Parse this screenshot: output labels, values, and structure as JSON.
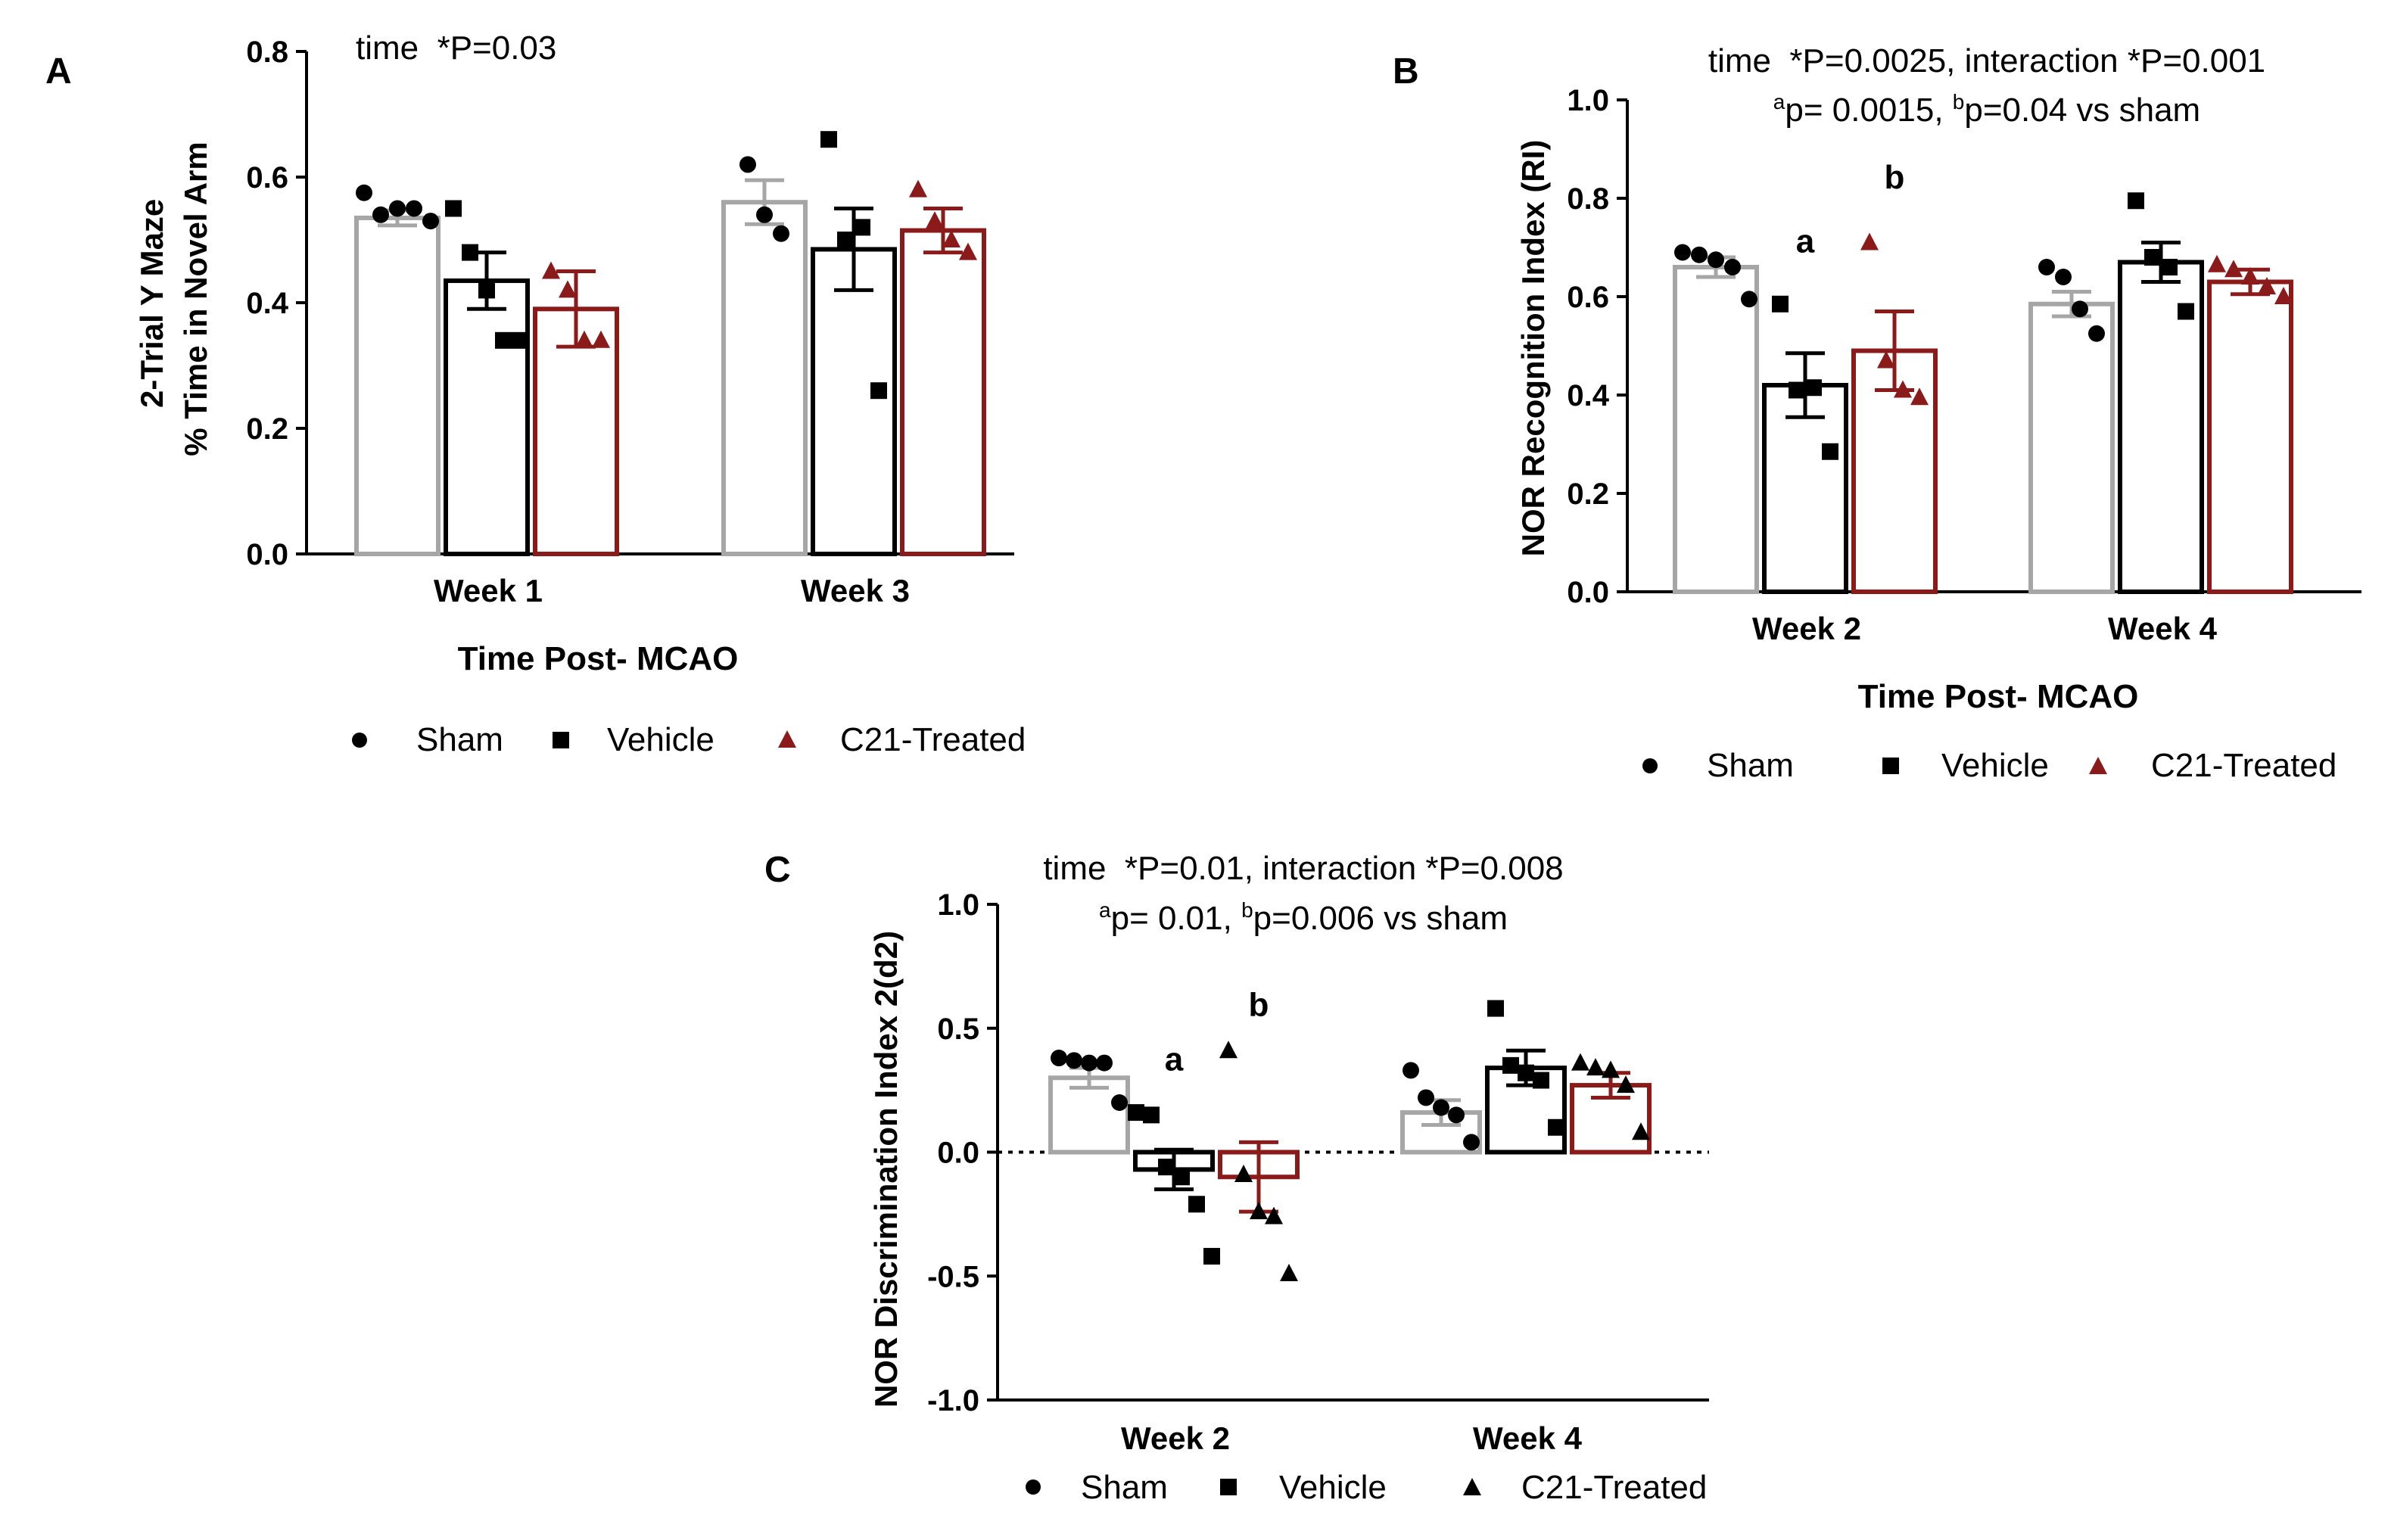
{
  "colors": {
    "sham": "#a6a6a6",
    "vehicle": "#000000",
    "c21": "#8b1a1a"
  },
  "legend_icons": [
    "circle-icon",
    "square-icon",
    "triangle-icon"
  ],
  "chart_data": [
    {
      "panel": "A",
      "type": "bar",
      "annotation": "time  *P=0.03",
      "ylabel_line1": "2-Trial Y Maze",
      "ylabel_line2": "% Time in Novel Arm",
      "xlabel": "Time Post- MCAO",
      "categories": [
        "Week 1",
        "Week 3"
      ],
      "ylim": [
        0,
        0.8
      ],
      "yticks": [
        0.0,
        0.2,
        0.4,
        0.6,
        0.8
      ],
      "ytick_labels": [
        "0.0",
        "0.2",
        "0.4",
        "0.6",
        "0.8"
      ],
      "legend_labels": [
        "Sham",
        "Vehicle",
        "C21-Treated"
      ],
      "series": [
        {
          "name": "Sham",
          "values": [
            0.535,
            0.56
          ],
          "sem": [
            0.012,
            0.035
          ],
          "points": [
            [
              0.575,
              0.54,
              0.55,
              0.55,
              0.53
            ],
            [
              0.62,
              0.54,
              0.51
            ]
          ]
        },
        {
          "name": "Vehicle",
          "values": [
            0.435,
            0.485
          ],
          "sem": [
            0.045,
            0.065
          ],
          "points": [
            [
              0.55,
              0.48,
              0.42,
              0.34,
              0.34
            ],
            [
              0.66,
              0.5,
              0.52,
              0.26
            ]
          ]
        },
        {
          "name": "C21-Treated",
          "values": [
            0.39,
            0.515
          ],
          "sem": [
            0.06,
            0.035
          ],
          "points": [
            [
              0.45,
              0.42,
              0.34,
              0.34
            ],
            [
              0.58,
              0.53,
              0.5,
              0.48
            ]
          ]
        }
      ],
      "letters": []
    },
    {
      "panel": "B",
      "type": "bar",
      "annotation_line1": "time  *P=0.0025, interaction *P=0.001",
      "annotation_line2_a_sup": "a",
      "annotation_line2_a_text": "p= 0.0015, ",
      "annotation_line2_b_sup": "b",
      "annotation_line2_b_text": "p=0.04 vs sham",
      "ylabel": "NOR Recognition Index (RI)",
      "xlabel": "Time Post- MCAO",
      "categories": [
        "Week 2",
        "Week 4"
      ],
      "ylim": [
        0,
        1.0
      ],
      "yticks": [
        0.0,
        0.2,
        0.4,
        0.6,
        0.8,
        1.0
      ],
      "ytick_labels": [
        "0.0",
        "0.2",
        "0.4",
        "0.6",
        "0.8",
        "1.0"
      ],
      "legend_labels": [
        "Sham",
        "Vehicle",
        "C21-Treated"
      ],
      "series": [
        {
          "name": "Sham",
          "values": [
            0.66,
            0.585
          ],
          "sem": [
            0.02,
            0.025
          ],
          "points": [
            [
              0.69,
              0.685,
              0.675,
              0.66,
              0.595
            ],
            [
              0.66,
              0.64,
              0.575,
              0.525
            ]
          ]
        },
        {
          "name": "Vehicle",
          "values": [
            0.42,
            0.67
          ],
          "sem": [
            0.065,
            0.04
          ],
          "points": [
            [
              0.585,
              0.41,
              0.415,
              0.285
            ],
            [
              0.795,
              0.68,
              0.66,
              0.57
            ]
          ]
        },
        {
          "name": "C21-Treated",
          "values": [
            0.49,
            0.63
          ],
          "sem": [
            0.08,
            0.025
          ],
          "points": [
            [
              0.71,
              0.47,
              0.41,
              0.395
            ],
            [
              0.665,
              0.655,
              0.64,
              0.62,
              0.6
            ]
          ]
        }
      ],
      "letters": [
        {
          "series": 1,
          "category": 0,
          "text": "a",
          "y": 0.69
        },
        {
          "series": 2,
          "category": 0,
          "text": "b",
          "y": 0.82
        }
      ]
    },
    {
      "panel": "C",
      "type": "bar",
      "annotation_line1": "time  *P=0.01, interaction *P=0.008",
      "annotation_line2_a_sup": "a",
      "annotation_line2_a_text": "p= 0.01, ",
      "annotation_line2_b_sup": "b",
      "annotation_line2_b_text": "p=0.006 vs sham",
      "ylabel": "NOR Discrimination Index 2(d2)",
      "xlabel": "",
      "categories": [
        "Week 2",
        "Week 4"
      ],
      "ylim": [
        -1.0,
        1.0
      ],
      "yticks": [
        -1.0,
        -0.5,
        0.0,
        0.5,
        1.0
      ],
      "ytick_labels": [
        "-1.0",
        "-0.5",
        "0.0",
        "0.5",
        "1.0"
      ],
      "reference_line": 0,
      "legend_labels": [
        "Sham",
        "Vehicle",
        "C21-Treated"
      ],
      "series": [
        {
          "name": "Sham",
          "values": [
            0.3,
            0.16
          ],
          "sem": [
            0.04,
            0.05
          ],
          "points": [
            [
              0.38,
              0.37,
              0.36,
              0.36,
              0.2
            ],
            [
              0.33,
              0.22,
              0.18,
              0.15,
              0.04
            ]
          ]
        },
        {
          "name": "Vehicle",
          "values": [
            -0.07,
            0.34
          ],
          "sem": [
            0.08,
            0.07
          ],
          "points": [
            [
              0.16,
              0.15,
              -0.06,
              -0.1,
              -0.21,
              -0.42
            ],
            [
              0.58,
              0.35,
              0.32,
              0.29,
              0.1
            ]
          ]
        },
        {
          "name": "C21-Treated",
          "values": [
            -0.1,
            0.27
          ],
          "sem": [
            0.14,
            0.05
          ],
          "points": [
            [
              0.41,
              -0.09,
              -0.24,
              -0.26,
              -0.49
            ],
            [
              0.36,
              0.34,
              0.33,
              0.27,
              0.08
            ]
          ]
        }
      ],
      "letters": [
        {
          "series": 1,
          "category": 0,
          "text": "a",
          "y": 0.33
        },
        {
          "series": 2,
          "category": 0,
          "text": "b",
          "y": 0.55
        }
      ]
    }
  ]
}
